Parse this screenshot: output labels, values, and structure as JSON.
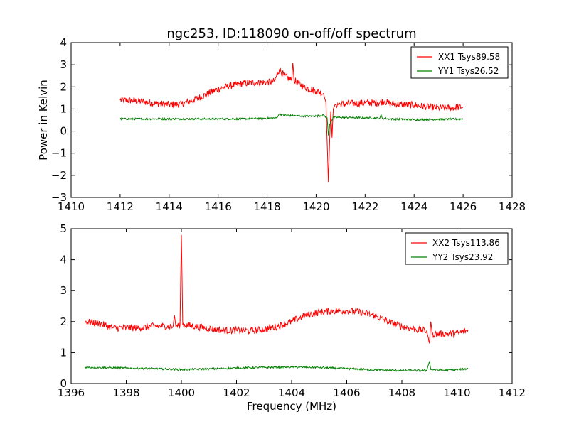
{
  "figure": {
    "title": "ngc253, ID:118090 on-off/off spectrum"
  },
  "chart_data": [
    {
      "type": "line",
      "title": "ngc253, ID:118090 on-off/off spectrum",
      "xlabel": "",
      "ylabel": "Power in Kelvin",
      "xlim": [
        1410,
        1428
      ],
      "ylim": [
        -3,
        4
      ],
      "xticks": [
        1410,
        1412,
        1414,
        1416,
        1418,
        1420,
        1422,
        1424,
        1426,
        1428
      ],
      "yticks": [
        -3,
        -2,
        -1,
        0,
        1,
        2,
        3,
        4
      ],
      "legend_position": "top-right",
      "grid": false,
      "series": [
        {
          "name": "XX1 Tsys89.58",
          "color": "#ff0000",
          "x": [
            1412.0,
            1412.5,
            1413.0,
            1413.5,
            1414.0,
            1414.5,
            1415.0,
            1415.5,
            1416.0,
            1416.5,
            1417.0,
            1417.5,
            1418.0,
            1418.3,
            1418.5,
            1418.7,
            1419.0,
            1419.05,
            1419.1,
            1419.5,
            1420.0,
            1420.3,
            1420.4,
            1420.5,
            1420.55,
            1420.6,
            1420.65,
            1420.7,
            1420.75,
            1420.8,
            1421.0,
            1421.5,
            1422.0,
            1422.5,
            1422.8,
            1423.0,
            1423.5,
            1424.0,
            1424.5,
            1425.0,
            1425.5,
            1426.0
          ],
          "y": [
            1.4,
            1.38,
            1.32,
            1.25,
            1.2,
            1.22,
            1.4,
            1.65,
            1.9,
            2.05,
            2.15,
            2.2,
            2.2,
            2.25,
            2.8,
            2.5,
            2.3,
            3.1,
            2.3,
            2.0,
            1.8,
            1.7,
            1.3,
            -2.3,
            -0.5,
            0.9,
            -0.3,
            1.0,
            1.15,
            1.2,
            1.22,
            1.25,
            1.28,
            1.28,
            1.35,
            1.25,
            1.2,
            1.18,
            1.1,
            1.05,
            1.05,
            1.1
          ]
        },
        {
          "name": "YY1 Tsys26.52",
          "color": "#008000",
          "x": [
            1412.0,
            1413.0,
            1414.0,
            1415.0,
            1416.0,
            1417.0,
            1418.0,
            1418.4,
            1418.5,
            1418.7,
            1419.0,
            1419.5,
            1420.0,
            1420.3,
            1420.45,
            1420.5,
            1420.55,
            1420.7,
            1421.0,
            1422.0,
            1422.6,
            1422.65,
            1422.7,
            1423.0,
            1424.0,
            1425.0,
            1426.0
          ],
          "y": [
            0.55,
            0.55,
            0.55,
            0.55,
            0.55,
            0.55,
            0.58,
            0.6,
            0.78,
            0.72,
            0.7,
            0.68,
            0.68,
            0.72,
            0.6,
            -0.2,
            0.3,
            0.62,
            0.62,
            0.6,
            0.58,
            0.75,
            0.58,
            0.55,
            0.52,
            0.53,
            0.55
          ]
        }
      ]
    },
    {
      "type": "line",
      "title": "",
      "xlabel": "Frequency (MHz)",
      "ylabel": "",
      "xlim": [
        1396,
        1412
      ],
      "ylim": [
        0,
        5
      ],
      "xticks": [
        1396,
        1398,
        1400,
        1402,
        1404,
        1406,
        1408,
        1410,
        1412
      ],
      "yticks": [
        0,
        1,
        2,
        3,
        4,
        5
      ],
      "legend_position": "top-right",
      "grid": false,
      "series": [
        {
          "name": "XX2 Tsys113.86",
          "color": "#ff0000",
          "x": [
            1396.5,
            1397.0,
            1397.5,
            1398.0,
            1398.5,
            1399.0,
            1399.5,
            1399.7,
            1399.75,
            1399.8,
            1399.95,
            1400.0,
            1400.05,
            1400.5,
            1401.0,
            1401.5,
            1402.0,
            1402.5,
            1403.0,
            1403.5,
            1404.0,
            1404.5,
            1405.0,
            1405.5,
            1406.0,
            1406.5,
            1407.0,
            1407.5,
            1408.0,
            1408.5,
            1408.9,
            1409.0,
            1409.05,
            1409.1,
            1409.5,
            1410.0,
            1410.4
          ],
          "y": [
            2.0,
            1.95,
            1.8,
            1.8,
            1.8,
            1.85,
            1.85,
            1.85,
            2.2,
            1.85,
            1.9,
            4.8,
            1.9,
            1.85,
            1.78,
            1.72,
            1.72,
            1.7,
            1.75,
            1.85,
            2.0,
            2.2,
            2.3,
            2.35,
            2.35,
            2.3,
            2.2,
            2.0,
            1.85,
            1.75,
            1.7,
            1.3,
            2.0,
            1.6,
            1.6,
            1.62,
            1.72
          ]
        },
        {
          "name": "YY2 Tsys23.92",
          "color": "#008000",
          "x": [
            1396.5,
            1397.0,
            1398.0,
            1399.0,
            1400.0,
            1401.0,
            1402.0,
            1403.0,
            1404.0,
            1405.0,
            1406.0,
            1407.0,
            1408.0,
            1408.9,
            1409.0,
            1409.05,
            1409.5,
            1410.0,
            1410.4
          ],
          "y": [
            0.52,
            0.52,
            0.5,
            0.48,
            0.45,
            0.47,
            0.5,
            0.52,
            0.53,
            0.52,
            0.48,
            0.44,
            0.42,
            0.42,
            0.72,
            0.45,
            0.43,
            0.45,
            0.48
          ]
        }
      ]
    }
  ]
}
